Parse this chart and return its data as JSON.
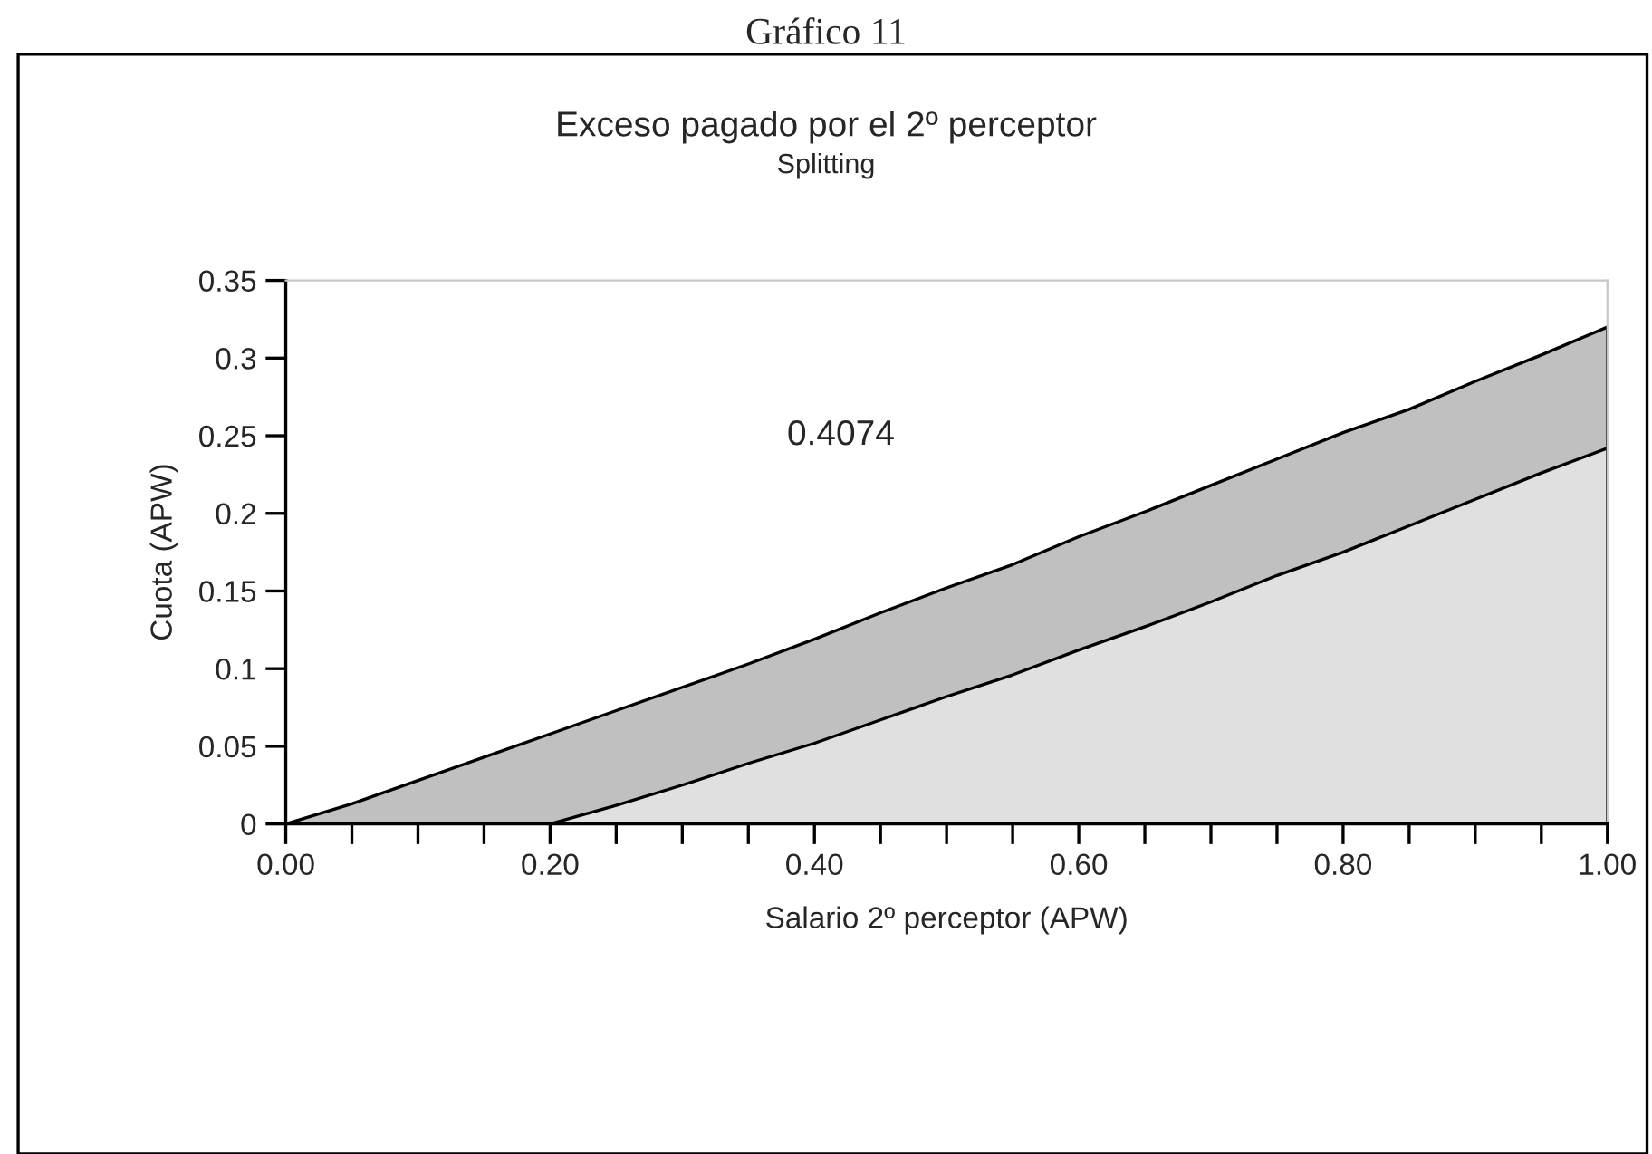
{
  "chart_data": {
    "type": "area",
    "title": "Exceso pagado por el 2º perceptor",
    "subtitle": "Splitting",
    "xlabel": "Salario 2º perceptor (APW)",
    "ylabel": "Cuota (APW)",
    "annotations": [
      "Gráfico 11",
      "0.4074"
    ],
    "x": [
      0,
      0.05,
      0.1,
      0.15,
      0.2,
      0.25,
      0.3,
      0.35,
      0.4,
      0.45,
      0.5,
      0.55,
      0.6,
      0.65,
      0.7,
      0.75,
      0.8,
      0.85,
      0.9,
      0.95,
      1.0
    ],
    "series": [
      {
        "color": "#c0c0c0",
        "values": [
          0,
          0.013,
          0.028,
          0.043,
          0.058,
          0.073,
          0.088,
          0.103,
          0.119,
          0.136,
          0.152,
          0.167,
          0.185,
          0.201,
          0.218,
          0.235,
          0.252,
          0.267,
          0.285,
          0.302,
          0.32
        ]
      },
      {
        "color": "#e0e0e0",
        "values": [
          0,
          0,
          0,
          0,
          0,
          0.012,
          0.025,
          0.039,
          0.052,
          0.067,
          0.082,
          0.096,
          0.112,
          0.127,
          0.143,
          0.16,
          0.175,
          0.192,
          0.209,
          0.226,
          0.242
        ]
      }
    ],
    "xlim": [
      0,
      1.0
    ],
    "ylim": [
      0,
      0.35
    ],
    "xticks": [
      {
        "value": 0,
        "label": "0.00"
      },
      {
        "value": 0.05,
        "label": null
      },
      {
        "value": 0.1,
        "label": null
      },
      {
        "value": 0.15,
        "label": null
      },
      {
        "value": 0.2,
        "label": "0.20"
      },
      {
        "value": 0.25,
        "label": null
      },
      {
        "value": 0.3,
        "label": null
      },
      {
        "value": 0.35,
        "label": null
      },
      {
        "value": 0.4,
        "label": "0.40"
      },
      {
        "value": 0.45,
        "label": null
      },
      {
        "value": 0.5,
        "label": null
      },
      {
        "value": 0.55,
        "label": null
      },
      {
        "value": 0.6,
        "label": "0.60"
      },
      {
        "value": 0.65,
        "label": null
      },
      {
        "value": 0.7,
        "label": null
      },
      {
        "value": 0.75,
        "label": null
      },
      {
        "value": 0.8,
        "label": "0.80"
      },
      {
        "value": 0.85,
        "label": null
      },
      {
        "value": 0.9,
        "label": null
      },
      {
        "value": 0.95,
        "label": null
      },
      {
        "value": 1.0,
        "label": "1.00"
      }
    ],
    "yticks": [
      0,
      0.05,
      0.1,
      0.15,
      0.2,
      0.25,
      0.3,
      0.35
    ],
    "grid": false,
    "legend": false,
    "line_style": "solid"
  }
}
